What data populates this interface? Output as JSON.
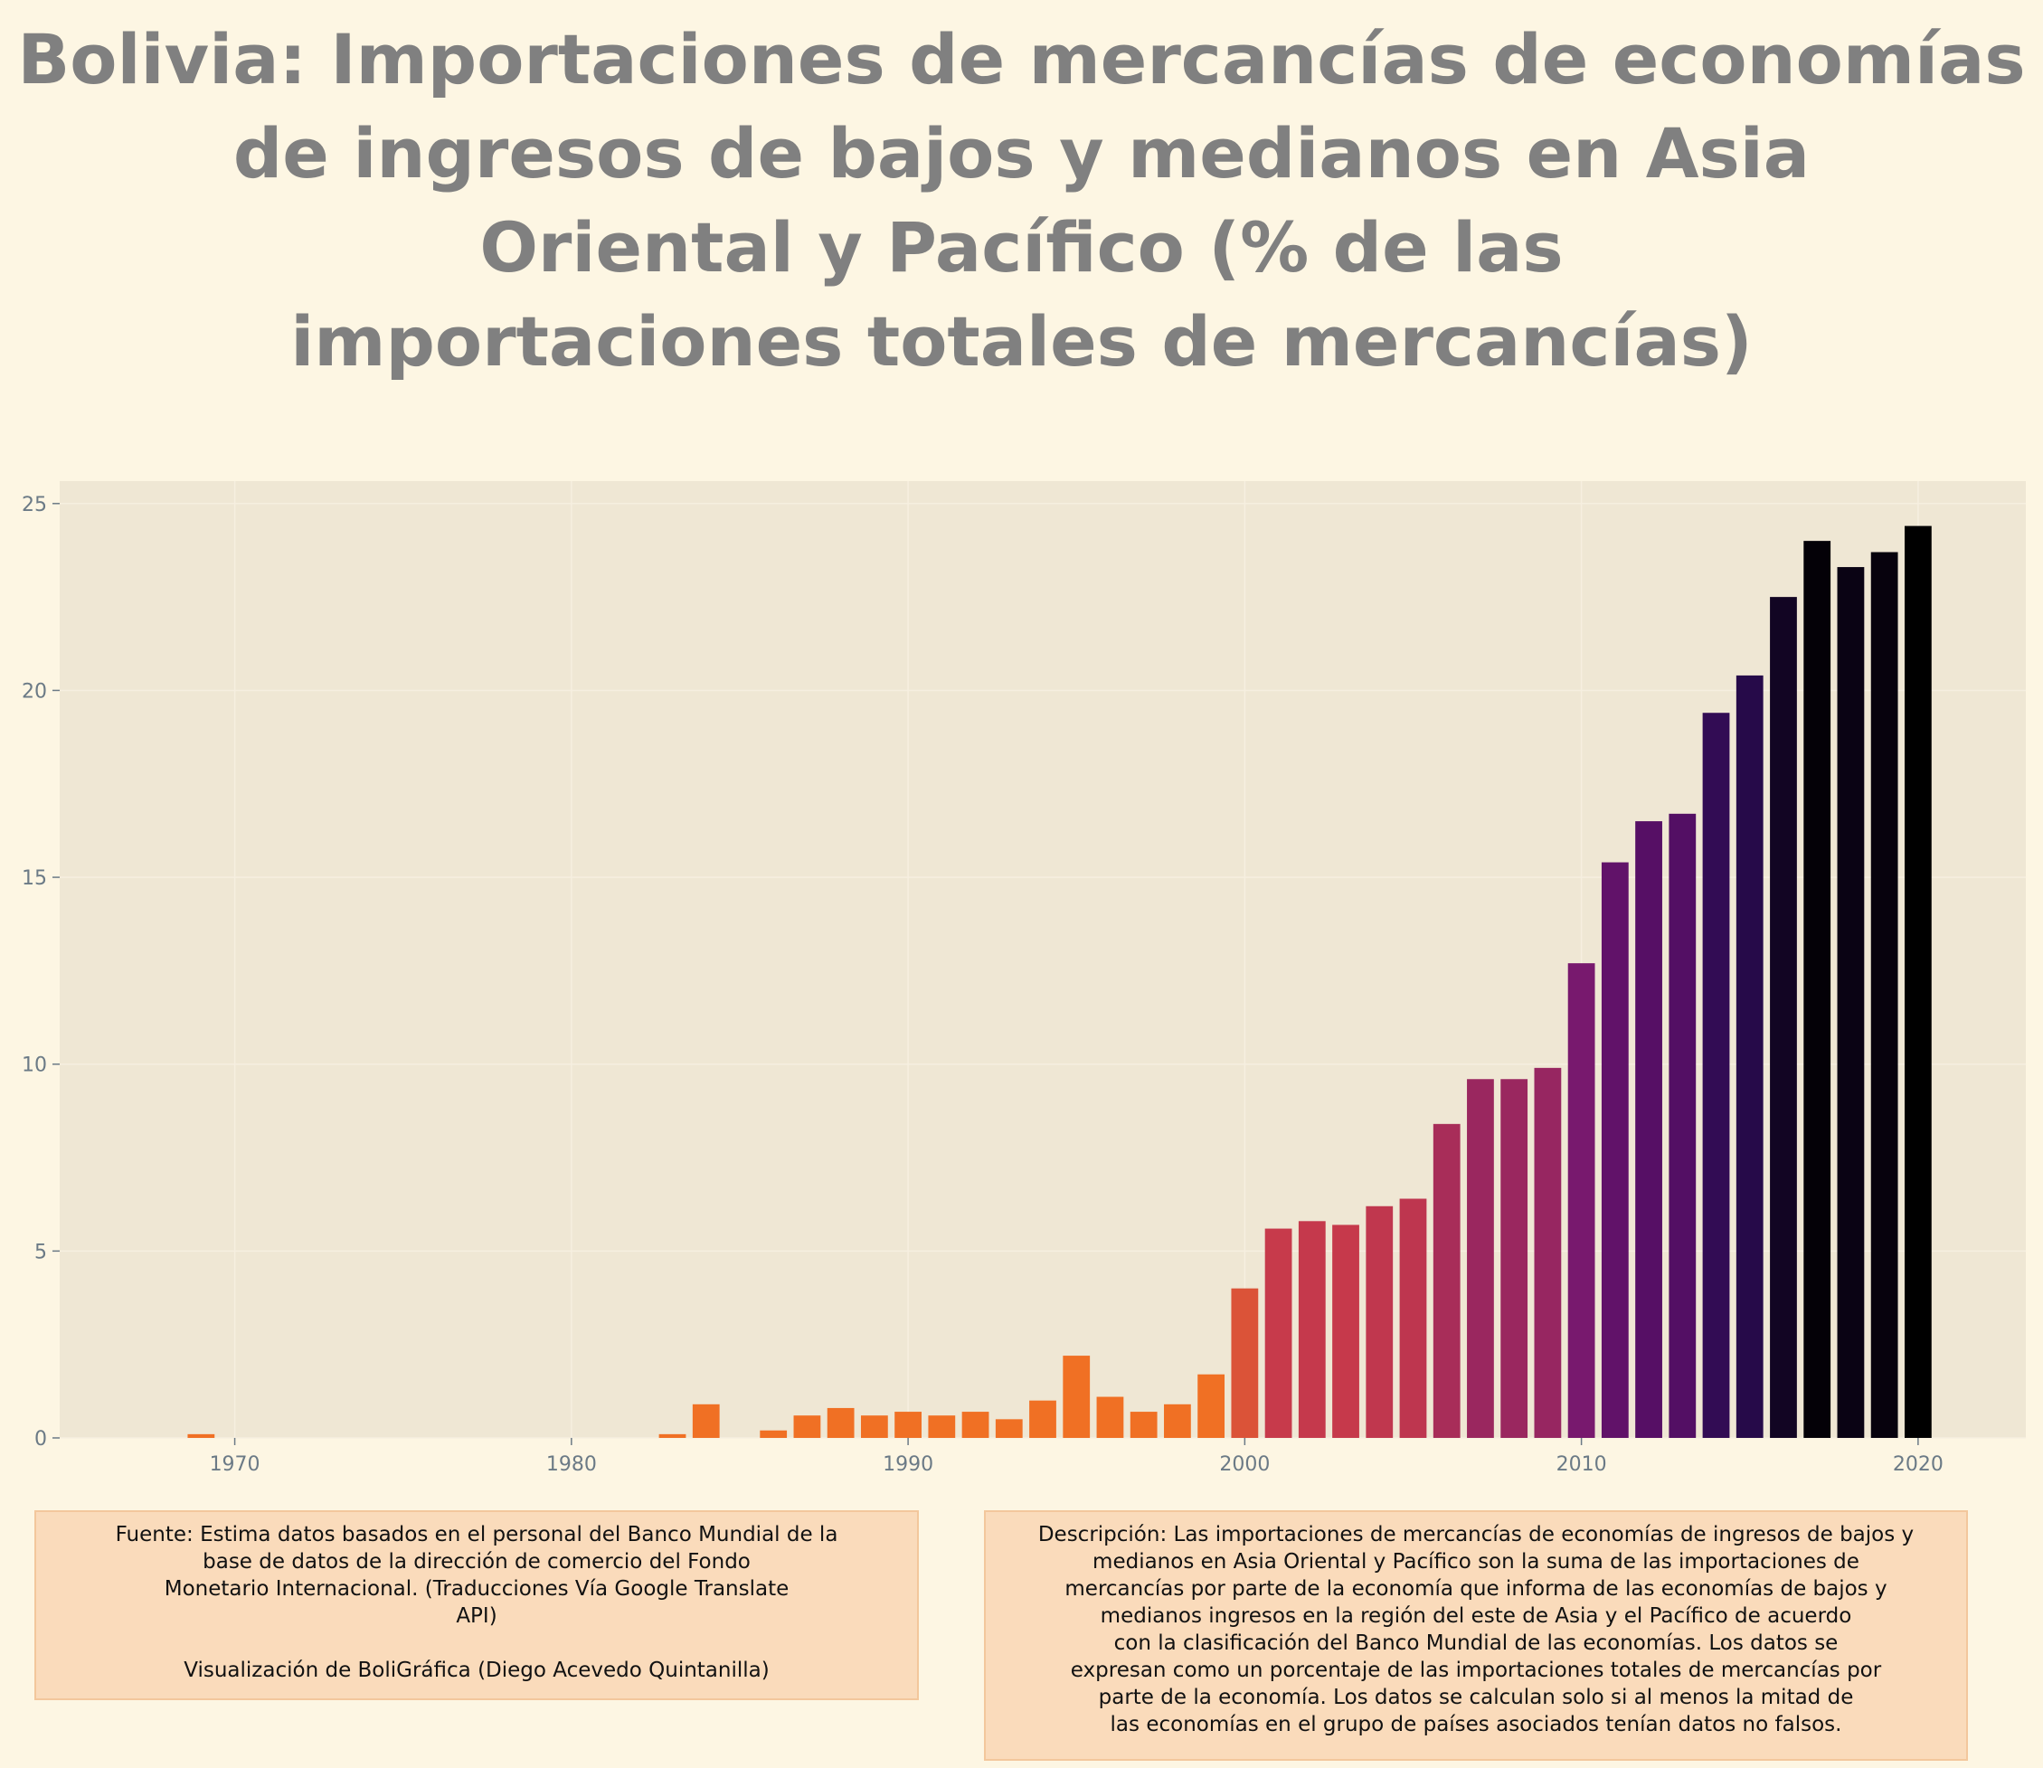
{
  "chart_data": {
    "type": "bar",
    "title": "Bolivia:  Importaciones de mercancías de economías\nde ingresos de bajos y medianos en Asia\nOriental y Pacífico (% de las\nimportaciones totales de mercancías)",
    "xlabel": "",
    "ylabel": "",
    "x": [
      1969,
      1983,
      1984,
      1986,
      1987,
      1988,
      1989,
      1990,
      1991,
      1992,
      1993,
      1994,
      1995,
      1996,
      1997,
      1998,
      1999,
      2000,
      2001,
      2002,
      2003,
      2004,
      2005,
      2006,
      2007,
      2008,
      2009,
      2010,
      2011,
      2012,
      2013,
      2014,
      2015,
      2016,
      2017,
      2018,
      2019,
      2020
    ],
    "values": [
      0.1,
      0.1,
      0.9,
      0.2,
      0.6,
      0.8,
      0.6,
      0.7,
      0.6,
      0.7,
      0.5,
      1.0,
      2.2,
      1.1,
      0.7,
      0.9,
      1.7,
      4.0,
      5.6,
      5.8,
      5.7,
      6.2,
      6.4,
      8.4,
      9.6,
      9.6,
      9.9,
      12.7,
      15.4,
      16.5,
      16.7,
      19.4,
      20.4,
      22.5,
      24.0,
      23.3,
      23.7,
      24.4
    ],
    "xlim": [
      1964.8,
      2023.2
    ],
    "ylim": [
      0,
      25.6
    ],
    "xticks": [
      1970,
      1980,
      1990,
      2000,
      2010,
      2020
    ],
    "yticks": [
      0,
      5,
      10,
      15,
      20,
      25
    ],
    "grid": true,
    "legend": "none",
    "colors": {
      "low": "#f07024",
      "mid": "#c83a4a",
      "high": "#5c1068",
      "top": "#000000",
      "plot_bg": "#efe7d4",
      "page_bg": "#fdf6e3"
    }
  },
  "source_text": "Fuente: Estima datos basados en el personal del Banco Mundial de la\nbase de datos de la dirección de comercio del Fondo\nMonetario Internacional. (Traducciones Vía Google Translate\nAPI)\n\nVisualización de BoliGráfica (Diego Acevedo Quintanilla)",
  "description_text": "Descripción: Las importaciones de mercancías de economías de ingresos de bajos y\nmedianos en Asia Oriental y Pacífico son la suma de las importaciones de\nmercancías por parte de la economía que informa de las economías de bajos y\nmedianos ingresos en la región del este de Asia y el Pacífico de acuerdo\ncon la clasificación del Banco Mundial de las economías. Los datos se\nexpresan como un porcentaje de las importaciones totales de mercancías por\nparte de la economía. Los datos se calculan solo si al menos la mitad de\nlas economías en el grupo de países asociados tenían datos no falsos."
}
